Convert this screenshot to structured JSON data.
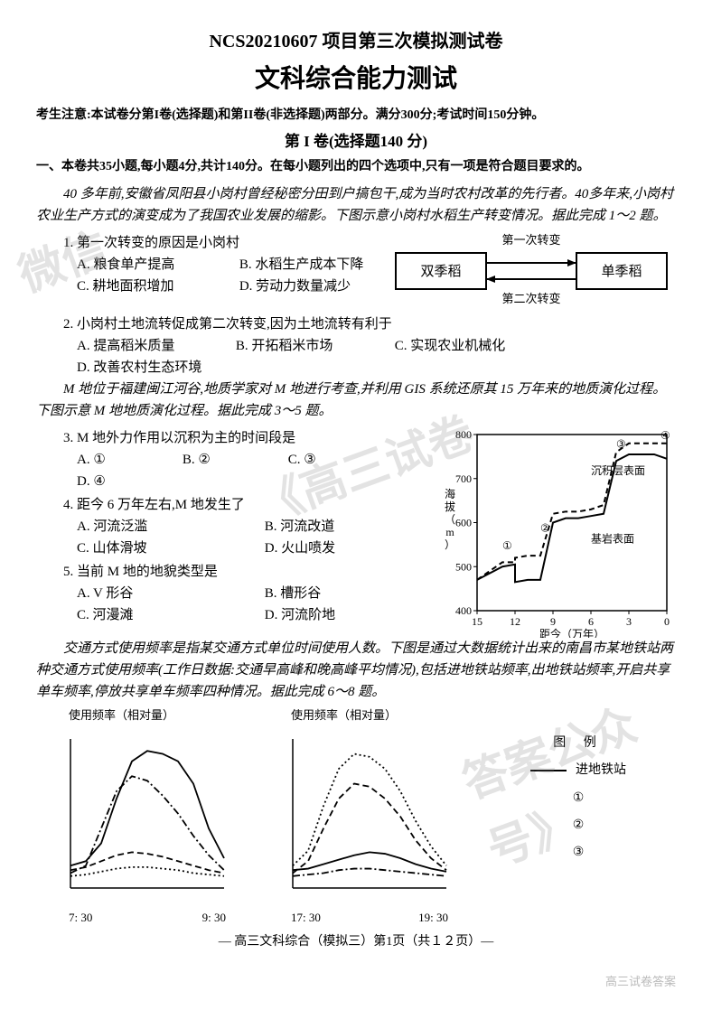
{
  "header": {
    "projectTitle": "NCS20210607 项目第三次模拟测试卷",
    "mainTitle": "文科综合能力测试",
    "notice": "考生注意:本试卷分第I卷(选择题)和第II卷(非选择题)两部分。满分300分;考试时间150分钟。",
    "sectionHeader": "第 I 卷(选择题140 分)",
    "instruction": "一、本卷共35小题,每小题4分,共计140分。在每小题列出的四个选项中,只有一项是符合题目要求的。"
  },
  "passage1": {
    "text": "40 多年前,安徽省凤阳县小岗村曾经秘密分田到户搞包干,成为当时农村改革的先行者。40多年来,小岗村农业生产方式的演变成为了我国农业发展的缩影。下图示意小岗村水稻生产转变情况。据此完成 1～2 题。"
  },
  "flowDiagram": {
    "leftBox": "双季稻",
    "rightBox": "单季稻",
    "topArrow": "第一次转变",
    "bottomArrow": "第二次转变",
    "boxFill": "#ffffff",
    "boxStroke": "#000000",
    "fontSize": 13
  },
  "q1": {
    "text": "1. 第一次转变的原因是小岗村",
    "optA": "A. 粮食单产提高",
    "optB": "B. 水稻生产成本下降",
    "optC": "C. 耕地面积增加",
    "optD": "D. 劳动力数量减少"
  },
  "q2": {
    "text": "2. 小岗村土地流转促成第二次转变,因为土地流转有利于",
    "optA": "A. 提高稻米质量",
    "optB": "B. 开拓稻米市场",
    "optC": "C. 实现农业机械化",
    "optD": "D. 改善农村生态环境"
  },
  "passage2": {
    "text": "M 地位于福建闽江河谷,地质学家对 M 地进行考查,并利用 GIS 系统还原其 15 万年来的地质演化过程。下图示意 M 地地质演化过程。据此完成 3～5 题。"
  },
  "geoChart": {
    "type": "line",
    "xlabel": "距今（万年）",
    "ylabel": "海拔（m）",
    "xlim": [
      15,
      0
    ],
    "ylim": [
      400,
      800
    ],
    "xticks": [
      15,
      12,
      9,
      6,
      3,
      0
    ],
    "yticks": [
      400,
      500,
      600,
      700,
      800
    ],
    "stroke": "#000000",
    "background_color": "#ffffff",
    "sediment_label": "沉积层表面",
    "bedrock_label": "基岩表面",
    "markers": [
      "①",
      "②",
      "③",
      "④"
    ],
    "sediment_line": {
      "style": "dashed",
      "points": [
        [
          15,
          470
        ],
        [
          13,
          510
        ],
        [
          12,
          510
        ],
        [
          12,
          520
        ],
        [
          11,
          525
        ],
        [
          10,
          525
        ],
        [
          9,
          620
        ],
        [
          8,
          625
        ],
        [
          7,
          625
        ],
        [
          6,
          630
        ],
        [
          5,
          640
        ],
        [
          4,
          760
        ],
        [
          3,
          780
        ],
        [
          2,
          780
        ],
        [
          1,
          780
        ],
        [
          0,
          780
        ]
      ]
    },
    "bedrock_line": {
      "style": "solid",
      "points": [
        [
          15,
          470
        ],
        [
          13,
          500
        ],
        [
          12,
          505
        ],
        [
          12,
          465
        ],
        [
          11,
          470
        ],
        [
          10,
          470
        ],
        [
          9,
          600
        ],
        [
          8,
          610
        ],
        [
          7,
          610
        ],
        [
          6,
          615
        ],
        [
          5,
          620
        ],
        [
          4,
          740
        ],
        [
          3,
          755
        ],
        [
          2,
          755
        ],
        [
          1,
          755
        ],
        [
          0,
          745
        ]
      ]
    },
    "fontSize": 12
  },
  "q3": {
    "text": "3. M 地外力作用以沉积为主的时间段是",
    "optA": "A. ①",
    "optB": "B. ②",
    "optC": "C. ③",
    "optD": "D. ④"
  },
  "q4": {
    "text": "4. 距今 6 万年左右,M 地发生了",
    "optA": "A. 河流泛滥",
    "optB": "B. 河流改道",
    "optC": "C. 山体滑坡",
    "optD": "D. 火山喷发"
  },
  "q5": {
    "text": "5. 当前 M 地的地貌类型是",
    "optA": "A. V 形谷",
    "optB": "B. 槽形谷",
    "optC": "C. 河漫滩",
    "optD": "D. 河流阶地"
  },
  "passage3": {
    "text": "交通方式使用频率是指某交通方式单位时间使用人数。下图是通过大数据统计出来的南昌市某地铁站两种交通方式使用频率(工作日数据:交通早高峰和晚高峰平均情况),包括进地铁站频率,出地铁站频率,开启共享单车频率,停放共享单车频率四种情况。据此完成 6～8 题。"
  },
  "freqChartLeft": {
    "type": "line",
    "title": "使用频率（相对量）",
    "xrange": [
      "7: 30",
      "9: 30"
    ],
    "stroke": "#000000",
    "background_color": "#ffffff",
    "series": {
      "solid": [
        [
          0,
          15
        ],
        [
          10,
          18
        ],
        [
          20,
          30
        ],
        [
          30,
          60
        ],
        [
          40,
          85
        ],
        [
          50,
          92
        ],
        [
          60,
          90
        ],
        [
          70,
          85
        ],
        [
          80,
          70
        ],
        [
          90,
          40
        ],
        [
          100,
          20
        ]
      ],
      "dashdot": [
        [
          0,
          10
        ],
        [
          10,
          15
        ],
        [
          20,
          40
        ],
        [
          30,
          65
        ],
        [
          40,
          75
        ],
        [
          50,
          72
        ],
        [
          60,
          62
        ],
        [
          70,
          50
        ],
        [
          80,
          35
        ],
        [
          90,
          22
        ],
        [
          100,
          12
        ]
      ],
      "dashed": [
        [
          0,
          12
        ],
        [
          10,
          14
        ],
        [
          20,
          18
        ],
        [
          30,
          22
        ],
        [
          40,
          24
        ],
        [
          50,
          23
        ],
        [
          60,
          21
        ],
        [
          70,
          18
        ],
        [
          80,
          15
        ],
        [
          90,
          12
        ],
        [
          100,
          10
        ]
      ],
      "dotted": [
        [
          0,
          8
        ],
        [
          10,
          9
        ],
        [
          20,
          11
        ],
        [
          30,
          13
        ],
        [
          40,
          14
        ],
        [
          50,
          14
        ],
        [
          60,
          13
        ],
        [
          70,
          12
        ],
        [
          80,
          10
        ],
        [
          90,
          9
        ],
        [
          100,
          8
        ]
      ]
    },
    "fontSize": 13
  },
  "freqChartRight": {
    "type": "line",
    "title": "使用频率（相对量）",
    "xrange": [
      "17: 30",
      "19: 30"
    ],
    "stroke": "#000000",
    "background_color": "#ffffff",
    "series": {
      "dotted": [
        [
          0,
          15
        ],
        [
          10,
          25
        ],
        [
          20,
          55
        ],
        [
          30,
          80
        ],
        [
          40,
          90
        ],
        [
          50,
          88
        ],
        [
          60,
          80
        ],
        [
          70,
          65
        ],
        [
          80,
          45
        ],
        [
          90,
          28
        ],
        [
          100,
          15
        ]
      ],
      "dashed": [
        [
          0,
          10
        ],
        [
          10,
          18
        ],
        [
          20,
          40
        ],
        [
          30,
          60
        ],
        [
          40,
          70
        ],
        [
          50,
          68
        ],
        [
          60,
          60
        ],
        [
          70,
          48
        ],
        [
          80,
          32
        ],
        [
          90,
          20
        ],
        [
          100,
          12
        ]
      ],
      "solid": [
        [
          0,
          12
        ],
        [
          10,
          13
        ],
        [
          20,
          16
        ],
        [
          30,
          19
        ],
        [
          40,
          22
        ],
        [
          50,
          24
        ],
        [
          60,
          23
        ],
        [
          70,
          20
        ],
        [
          80,
          16
        ],
        [
          90,
          13
        ],
        [
          100,
          11
        ]
      ],
      "dashdot": [
        [
          0,
          8
        ],
        [
          10,
          9
        ],
        [
          20,
          10
        ],
        [
          30,
          12
        ],
        [
          40,
          13
        ],
        [
          50,
          13
        ],
        [
          60,
          12
        ],
        [
          70,
          11
        ],
        [
          80,
          10
        ],
        [
          90,
          9
        ],
        [
          100,
          8
        ]
      ]
    },
    "fontSize": 13
  },
  "legend": {
    "title": "图 例",
    "item1": "进地铁站",
    "item2": "①",
    "item3": "②",
    "item4": "③"
  },
  "footer": "— 高三文科综合（模拟三）第1页（共１２页）—",
  "watermarks": {
    "wm1": "微信",
    "wm2": "《高三试卷",
    "wm3": "答案公众号》",
    "corner": "高三试卷答案"
  }
}
